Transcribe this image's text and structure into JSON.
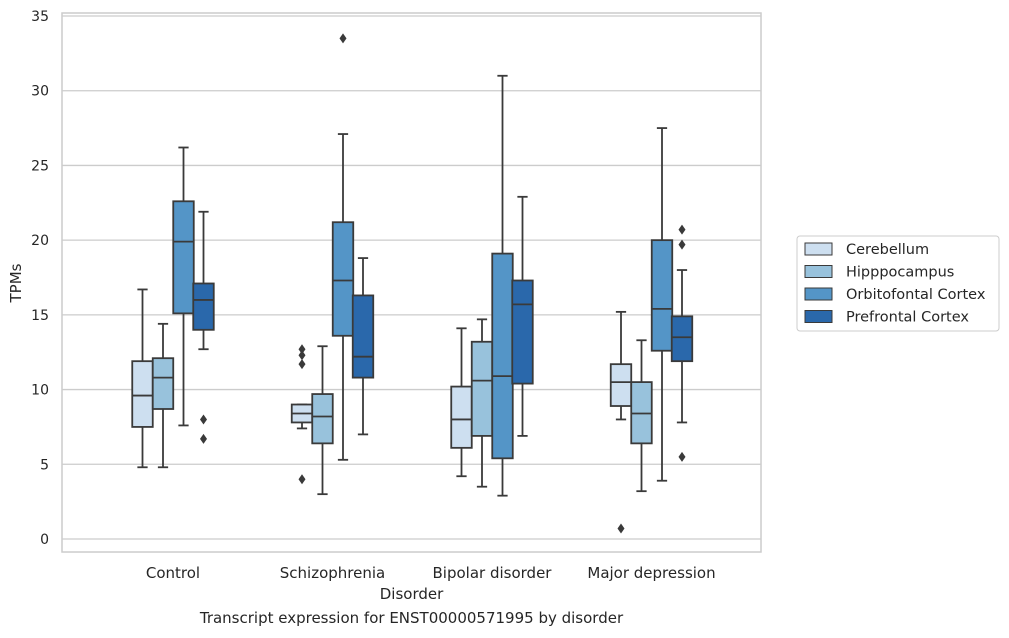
{
  "caption": "Transcript expression for ENST00000571995 by disorder",
  "colors": {
    "Cerebellum": "#cddff0",
    "Hipppocampus": "#98c2dc",
    "Orbitofontal Cortex": "#5495c7",
    "Prefrontal Cortex": "#2a68ab",
    "box_edge": "#3a3a3a",
    "grid": "#cccccc",
    "flier": "#3a3a3a"
  },
  "chart_data": {
    "type": "boxplot",
    "xlabel": "Disorder",
    "ylabel": "TPMs",
    "ylim": [
      -0.9,
      35.3
    ],
    "yticks": [
      0,
      5,
      10,
      15,
      20,
      25,
      30,
      35
    ],
    "grid": true,
    "legend_position": "right",
    "categories": [
      "Control",
      "Schizophrenia",
      "Bipolar disorder",
      "Major depression"
    ],
    "series": [
      {
        "name": "Cerebellum",
        "boxes": [
          {
            "whislo": 4.8,
            "q1": 7.5,
            "med": 9.6,
            "q3": 11.9,
            "whishi": 16.7,
            "fliers": []
          },
          {
            "whislo": 7.4,
            "q1": 7.8,
            "med": 8.4,
            "q3": 9.0,
            "whishi": 9.0,
            "fliers": [
              4.0,
              11.7,
              12.3,
              12.7
            ]
          },
          {
            "whislo": 4.2,
            "q1": 6.1,
            "med": 8.0,
            "q3": 10.2,
            "whishi": 14.1,
            "fliers": []
          },
          {
            "whislo": 8.0,
            "q1": 8.9,
            "med": 10.5,
            "q3": 11.7,
            "whishi": 15.2,
            "fliers": [
              0.7
            ]
          }
        ]
      },
      {
        "name": "Hipppocampus",
        "boxes": [
          {
            "whislo": 4.8,
            "q1": 8.7,
            "med": 10.8,
            "q3": 12.1,
            "whishi": 14.4,
            "fliers": []
          },
          {
            "whislo": 3.0,
            "q1": 6.4,
            "med": 8.2,
            "q3": 9.7,
            "whishi": 12.9,
            "fliers": []
          },
          {
            "whislo": 3.5,
            "q1": 6.9,
            "med": 10.6,
            "q3": 13.2,
            "whishi": 14.7,
            "fliers": []
          },
          {
            "whislo": 3.2,
            "q1": 6.4,
            "med": 8.4,
            "q3": 10.5,
            "whishi": 13.3,
            "fliers": []
          }
        ]
      },
      {
        "name": "Orbitofontal Cortex",
        "boxes": [
          {
            "whislo": 7.6,
            "q1": 15.1,
            "med": 19.9,
            "q3": 22.6,
            "whishi": 26.2,
            "fliers": []
          },
          {
            "whislo": 5.3,
            "q1": 13.6,
            "med": 17.3,
            "q3": 21.2,
            "whishi": 27.1,
            "fliers": [
              33.5
            ]
          },
          {
            "whislo": 2.9,
            "q1": 5.4,
            "med": 10.9,
            "q3": 19.1,
            "whishi": 31.0,
            "fliers": []
          },
          {
            "whislo": 3.9,
            "q1": 12.6,
            "med": 15.4,
            "q3": 20.0,
            "whishi": 27.5,
            "fliers": []
          }
        ]
      },
      {
        "name": "Prefrontal Cortex",
        "boxes": [
          {
            "whislo": 12.7,
            "q1": 14.0,
            "med": 16.0,
            "q3": 17.1,
            "whishi": 21.9,
            "fliers": [
              6.7,
              8.0
            ]
          },
          {
            "whislo": 7.0,
            "q1": 10.8,
            "med": 12.2,
            "q3": 16.3,
            "whishi": 18.8,
            "fliers": []
          },
          {
            "whislo": 6.9,
            "q1": 10.4,
            "med": 15.7,
            "q3": 17.3,
            "whishi": 22.9,
            "fliers": []
          },
          {
            "whislo": 7.8,
            "q1": 11.9,
            "med": 13.5,
            "q3": 14.9,
            "whishi": 18.0,
            "fliers": [
              5.5,
              19.7,
              20.7
            ]
          }
        ]
      }
    ]
  }
}
